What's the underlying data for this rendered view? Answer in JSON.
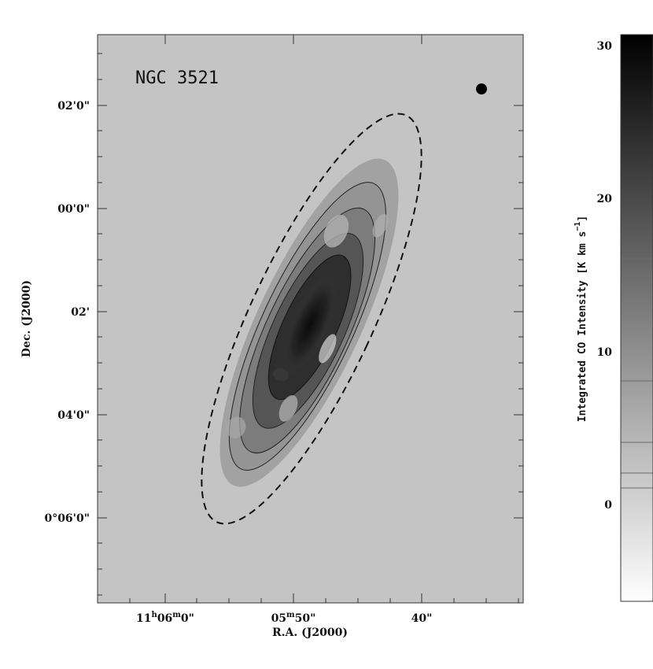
{
  "chart_data": {
    "type": "heatmap",
    "title": "NGC 3521",
    "xlabel": "R.A. (J2000)",
    "ylabel": "Dec. (J2000)",
    "x_ticks": [
      "11h06m0s",
      "05m50s",
      "40s"
    ],
    "y_ticks": [
      "02'0\"",
      "00'0\"",
      "02'",
      "04'0\"",
      "0°06'0\""
    ],
    "colorbar": {
      "label": "Integrated CO Intensity [K km s⁻¹]",
      "ticks": [
        30,
        20,
        10,
        0
      ],
      "range": [
        -6,
        30
      ],
      "colormap": "grayscale",
      "low_color": "#ffffff",
      "high_color": "#000000"
    },
    "contour_levels": [
      0,
      2,
      4,
      8,
      16
    ],
    "has_beam_marker": true,
    "has_dashed_ellipse": true,
    "grid": false
  },
  "labels": {
    "title": "NGC 3521",
    "xlabel": "R.A. (J2000)",
    "ylabel": "Dec. (J2000)",
    "cb_label_main": "Integrated CO Intensity [K km s",
    "cb_label_sup": "−1",
    "cb_label_end": "]",
    "x_tick_0_main": "11",
    "x_tick_0_h": "h",
    "x_tick_0_mid": "06",
    "x_tick_0_m": "m",
    "x_tick_0_end": "0\"",
    "x_tick_1_main": "05",
    "x_tick_1_m": "m",
    "x_tick_1_end": "50\"",
    "x_tick_2": "40\"",
    "y_tick_0": "02'0\"",
    "y_tick_1": "00'0\"",
    "y_tick_2": "02'",
    "y_tick_3": "04'0\"",
    "y_tick_4": "0°06'0\"",
    "cb_tick_0": "30",
    "cb_tick_1": "20",
    "cb_tick_2": "10",
    "cb_tick_3": "0"
  },
  "colors": {
    "background_map": "#c4c4c4",
    "frame": "#333333"
  }
}
